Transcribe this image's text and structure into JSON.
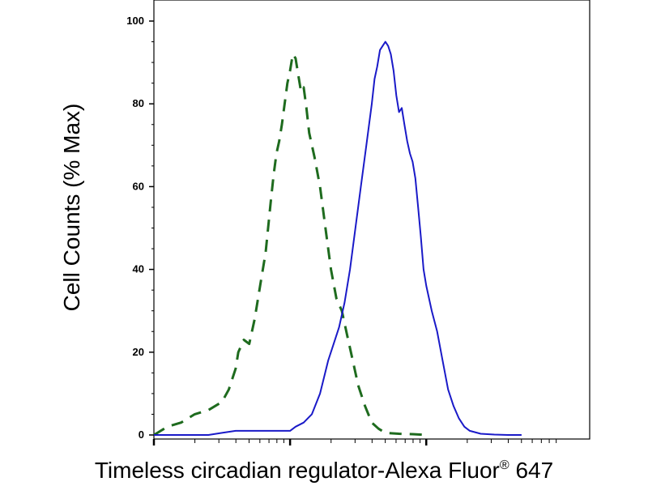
{
  "chart_data": {
    "type": "line",
    "xlabel": "Timeless circadian regulator-Alexa Fluor",
    "xlabel_sup": "®",
    "xlabel_suffix": " 647",
    "ylabel": "Cell Counts (% Max)",
    "ylim": [
      0,
      100
    ],
    "yticks": [
      0,
      20,
      40,
      60,
      80,
      100
    ],
    "xscale": "log",
    "xlim": [
      0,
      3.2
    ],
    "x_major_ticks": [
      0,
      1,
      2
    ],
    "grid": false,
    "series": [
      {
        "style": "dashed",
        "color": "#1e6b1e",
        "x": [
          0.0,
          0.1,
          0.2,
          0.3,
          0.4,
          0.5,
          0.55,
          0.6,
          0.62,
          0.66,
          0.7,
          0.74,
          0.78,
          0.82,
          0.86,
          0.88,
          0.9,
          0.92,
          0.94,
          0.96,
          0.98,
          1.0,
          1.02,
          1.04,
          1.06,
          1.08,
          1.1,
          1.12,
          1.14,
          1.18,
          1.22,
          1.26,
          1.3,
          1.34,
          1.38,
          1.42,
          1.46,
          1.5,
          1.55,
          1.6,
          1.65,
          1.7,
          1.8,
          1.9,
          2.0
        ],
        "y": [
          0,
          2,
          3,
          5,
          6,
          8,
          11,
          16,
          20,
          23,
          22,
          28,
          36,
          44,
          57,
          63,
          68,
          71,
          75,
          80,
          85,
          88,
          92,
          91,
          87,
          83,
          84,
          79,
          73,
          67,
          60,
          50,
          40,
          33,
          30,
          24,
          18,
          12,
          7,
          3,
          1.5,
          0.5,
          0.3,
          0.2,
          0
        ]
      },
      {
        "style": "solid",
        "color": "#1a1ac8",
        "x": [
          0.0,
          0.2,
          0.4,
          0.5,
          0.6,
          0.7,
          0.8,
          0.9,
          1.0,
          1.04,
          1.1,
          1.16,
          1.22,
          1.28,
          1.32,
          1.36,
          1.4,
          1.44,
          1.48,
          1.52,
          1.56,
          1.6,
          1.62,
          1.64,
          1.66,
          1.68,
          1.7,
          1.72,
          1.74,
          1.76,
          1.78,
          1.8,
          1.82,
          1.84,
          1.86,
          1.88,
          1.9,
          1.92,
          1.94,
          1.96,
          1.98,
          2.0,
          2.04,
          2.08,
          2.12,
          2.16,
          2.2,
          2.24,
          2.28,
          2.32,
          2.4,
          2.5,
          2.6,
          2.7
        ],
        "y": [
          0,
          0,
          0,
          0.5,
          1,
          1,
          1,
          1,
          1,
          2,
          3,
          5,
          10,
          18,
          22,
          26,
          32,
          40,
          50,
          60,
          70,
          80,
          86,
          89,
          93,
          94,
          95,
          94,
          92,
          88,
          82,
          78,
          79,
          75,
          71,
          68,
          66,
          62,
          55,
          48,
          40,
          36,
          30,
          25,
          18,
          11,
          7,
          4,
          2,
          1,
          0.3,
          0.1,
          0,
          0
        ]
      }
    ]
  }
}
